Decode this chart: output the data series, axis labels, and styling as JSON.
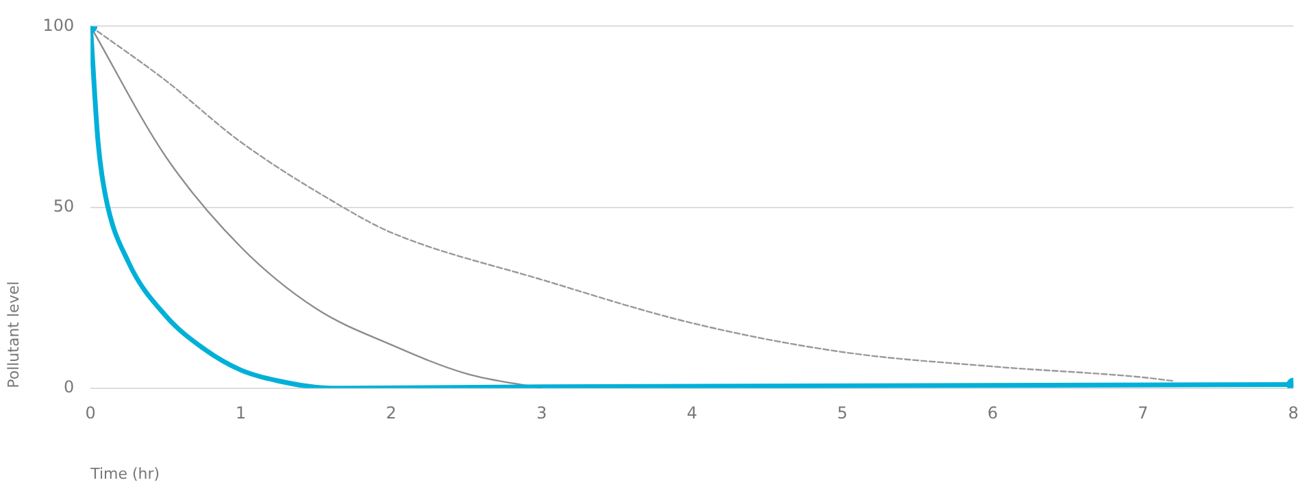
{
  "chart_data": {
    "type": "line",
    "xlabel": "Time (hr)",
    "ylabel": "Pollutant level",
    "xlim": [
      0,
      8
    ],
    "xticks": [
      0,
      1,
      2,
      3,
      4,
      5,
      6,
      7,
      8
    ],
    "ylim": [
      0,
      100
    ],
    "yticks": [
      0,
      50,
      100
    ],
    "grid": "y",
    "legend": false,
    "series": [
      {
        "color": "#999999",
        "line_style": "dashed",
        "marker": "none",
        "x": [
          0,
          0.5,
          1,
          1.68,
          2,
          3,
          4,
          5,
          6,
          7,
          7.2
        ],
        "values": [
          100,
          85,
          68,
          50,
          43,
          30,
          18,
          10,
          6,
          3,
          2
        ]
      },
      {
        "color": "#8c8c8c",
        "line_style": "solid",
        "marker": "none",
        "x": [
          0,
          0.5,
          1,
          1.5,
          2,
          2.5,
          3
        ],
        "values": [
          100,
          64,
          39,
          22,
          12,
          4,
          0
        ]
      },
      {
        "color": "#00b0d8",
        "line_style": "solid",
        "marker": "none",
        "x": [
          0,
          0.05,
          0.1,
          0.25,
          0.5,
          0.75,
          1,
          1.25,
          1.6,
          3,
          8
        ],
        "values": [
          100,
          68,
          53,
          35,
          20,
          11,
          5,
          2,
          0,
          0.4,
          1
        ]
      },
      {
        "type": "scatter",
        "color": "#00b0d8",
        "marker": "circle",
        "x": [
          0,
          8
        ],
        "values": [
          100,
          1
        ]
      }
    ]
  }
}
